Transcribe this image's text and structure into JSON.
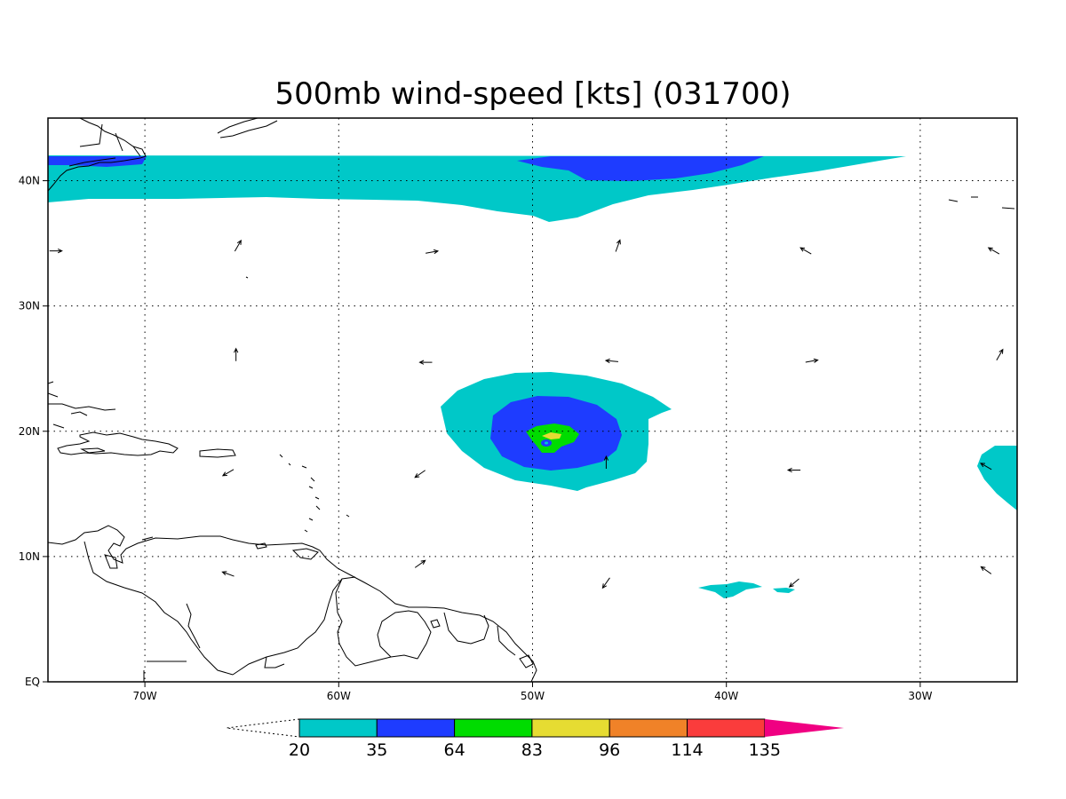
{
  "title": "500mb wind-speed [kts] (031700)",
  "map": {
    "lon_range": [
      -75,
      -25
    ],
    "lat_range": [
      0,
      45
    ],
    "lon_ticks": [
      {
        "value": -70,
        "label": "70W"
      },
      {
        "value": -60,
        "label": "60W"
      },
      {
        "value": -50,
        "label": "50W"
      },
      {
        "value": -40,
        "label": "40W"
      },
      {
        "value": -30,
        "label": "30W"
      }
    ],
    "lat_ticks": [
      {
        "value": 0,
        "label": "EQ"
      },
      {
        "value": 10,
        "label": "10N"
      },
      {
        "value": 20,
        "label": "20N"
      },
      {
        "value": 30,
        "label": "30N"
      },
      {
        "value": 40,
        "label": "40N"
      }
    ],
    "grid": true
  },
  "colorbar": {
    "labels": [
      "20",
      "35",
      "64",
      "83",
      "96",
      "114",
      "135"
    ],
    "colors": [
      "#00c8c8",
      "#1e3cff",
      "#00dc00",
      "#e6dc32",
      "#f08228",
      "#fa3c3c",
      "#f00082"
    ]
  },
  "wind_arrows": [
    {
      "lon": -74.6,
      "lat": 34.4,
      "dir": 90
    },
    {
      "lon": -65.2,
      "lat": 34.8,
      "dir": 30
    },
    {
      "lon": -55.2,
      "lat": 34.3,
      "dir": 80
    },
    {
      "lon": -45.6,
      "lat": 34.8,
      "dir": 20
    },
    {
      "lon": -35.9,
      "lat": 34.4,
      "dir": 300
    },
    {
      "lon": -26.2,
      "lat": 34.4,
      "dir": 300
    },
    {
      "lon": -65.3,
      "lat": 26.1,
      "dir": 0
    },
    {
      "lon": -55.5,
      "lat": 25.5,
      "dir": 270
    },
    {
      "lon": -45.9,
      "lat": 25.6,
      "dir": 275
    },
    {
      "lon": -35.6,
      "lat": 25.6,
      "dir": 80
    },
    {
      "lon": -25.9,
      "lat": 26.1,
      "dir": 30
    },
    {
      "lon": -65.7,
      "lat": 16.7,
      "dir": 240
    },
    {
      "lon": -55.8,
      "lat": 16.6,
      "dir": 235
    },
    {
      "lon": -46.2,
      "lat": 17.5,
      "dir": 0
    },
    {
      "lon": -36.5,
      "lat": 16.9,
      "dir": 270
    },
    {
      "lon": -26.6,
      "lat": 17.2,
      "dir": 300
    },
    {
      "lon": -65.7,
      "lat": 8.6,
      "dir": 290
    },
    {
      "lon": -55.8,
      "lat": 9.4,
      "dir": 55
    },
    {
      "lon": -46.2,
      "lat": 7.9,
      "dir": 215
    },
    {
      "lon": -36.5,
      "lat": 7.9,
      "dir": 230
    },
    {
      "lon": -26.6,
      "lat": 8.9,
      "dir": 305
    }
  ]
}
